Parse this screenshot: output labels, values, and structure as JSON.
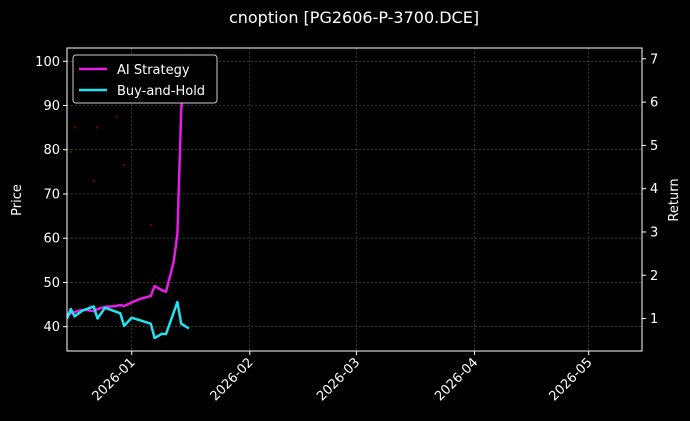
{
  "chart_data": {
    "type": "line",
    "title": "cnoption [PG2606-P-3700.DCE]",
    "ylabel": "Price",
    "y2label": "Return",
    "x_range": [
      "2025-12-15",
      "2026-05-15"
    ],
    "ylim": [
      34.5,
      103
    ],
    "y2lim": [
      0.25,
      7.25
    ],
    "x_ticks": [
      "2026-01",
      "2026-02",
      "2026-03",
      "2026-04",
      "2026-05"
    ],
    "y_ticks": [
      40,
      50,
      60,
      70,
      80,
      90,
      100
    ],
    "y2_ticks": [
      1,
      2,
      3,
      4,
      5,
      6,
      7
    ],
    "grid": true,
    "legend_position": "top-left",
    "colors": {
      "background": "#000000",
      "ai_strategy": "#e81ce8",
      "buy_and_hold": "#22e3ee",
      "price_dots": "#8b0000"
    },
    "series": [
      {
        "name": "AI Strategy",
        "axis": "right",
        "x": [
          "2025-12-15",
          "2025-12-16",
          "2025-12-18",
          "2025-12-20",
          "2025-12-22",
          "2025-12-23",
          "2025-12-25",
          "2025-12-27",
          "2025-12-29",
          "2025-12-30",
          "2026-01-01",
          "2026-01-03",
          "2026-01-06",
          "2026-01-07",
          "2026-01-09",
          "2026-01-10",
          "2026-01-12",
          "2026-01-13",
          "2026-01-14",
          "2026-01-15"
        ],
        "values": [
          1.05,
          1.12,
          1.18,
          1.2,
          1.17,
          1.22,
          1.27,
          1.28,
          1.31,
          1.29,
          1.37,
          1.45,
          1.52,
          1.75,
          1.65,
          1.62,
          2.3,
          2.95,
          5.8,
          7.1
        ]
      },
      {
        "name": "Buy-and-Hold",
        "axis": "right",
        "x": [
          "2025-12-15",
          "2025-12-16",
          "2025-12-17",
          "2025-12-19",
          "2025-12-22",
          "2025-12-23",
          "2025-12-25",
          "2025-12-29",
          "2025-12-30",
          "2026-01-01",
          "2026-01-06",
          "2026-01-07",
          "2026-01-09",
          "2026-01-10",
          "2026-01-13",
          "2026-01-14",
          "2026-01-16"
        ],
        "values": [
          1.0,
          1.22,
          1.05,
          1.18,
          1.28,
          1.0,
          1.25,
          1.12,
          0.83,
          1.02,
          0.88,
          0.55,
          0.65,
          0.64,
          1.38,
          0.88,
          0.77
        ]
      },
      {
        "name": "",
        "axis": "left",
        "style": "dots",
        "x": [
          "2025-12-16",
          "2025-12-17",
          "2025-12-22",
          "2025-12-23",
          "2025-12-28",
          "2025-12-30",
          "2026-01-06"
        ],
        "values": [
          79.5,
          85,
          73,
          85,
          87.5,
          76.5,
          63
        ]
      }
    ]
  }
}
